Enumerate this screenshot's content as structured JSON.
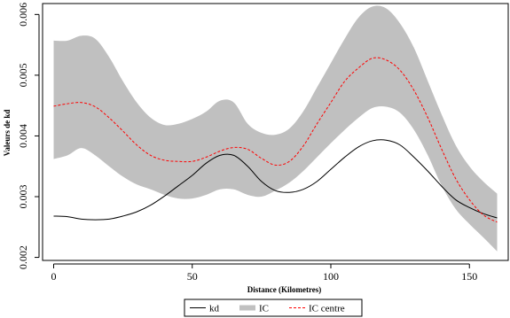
{
  "chart_data": {
    "type": "line",
    "xlabel": "Distance (Kilometres)",
    "ylabel": "Valeurs de kd",
    "xlim": [
      -4,
      164
    ],
    "ylim": [
      0.00195,
      0.00618
    ],
    "x_ticks": [
      0,
      50,
      100,
      150
    ],
    "x_tick_labels": [
      "0",
      "50",
      "100",
      "150"
    ],
    "y_ticks": [
      0.002,
      0.003,
      0.004,
      0.005,
      0.006
    ],
    "y_tick_labels": [
      "0.002",
      "0.003",
      "0.004",
      "0.005",
      "0.006"
    ],
    "grid": false,
    "legend_position": "bottom-center",
    "x": [
      0,
      5,
      10,
      15,
      20,
      25,
      30,
      35,
      40,
      45,
      50,
      55,
      60,
      65,
      70,
      75,
      80,
      85,
      90,
      95,
      100,
      105,
      110,
      115,
      120,
      125,
      130,
      135,
      140,
      145,
      150,
      155,
      160
    ],
    "series": [
      {
        "name": "kd",
        "style": "solid",
        "color": "#000000",
        "values": [
          0.00268,
          0.00267,
          0.00263,
          0.00262,
          0.00263,
          0.00268,
          0.00275,
          0.00286,
          0.00301,
          0.00318,
          0.00335,
          0.00355,
          0.00368,
          0.00368,
          0.0035,
          0.00325,
          0.0031,
          0.00307,
          0.00312,
          0.00325,
          0.00345,
          0.00365,
          0.00382,
          0.00392,
          0.00393,
          0.00385,
          0.00365,
          0.00342,
          0.00317,
          0.00295,
          0.00282,
          0.00272,
          0.00265
        ]
      },
      {
        "name": "IC",
        "style": "band",
        "color": "#c0c0c0",
        "lower": [
          0.00362,
          0.00368,
          0.0038,
          0.00368,
          0.0035,
          0.00333,
          0.0032,
          0.00312,
          0.00303,
          0.00297,
          0.00297,
          0.00303,
          0.00312,
          0.00312,
          0.00303,
          0.003,
          0.0031,
          0.00323,
          0.00342,
          0.00365,
          0.00388,
          0.0041,
          0.0043,
          0.00446,
          0.00448,
          0.00438,
          0.0041,
          0.00368,
          0.00318,
          0.0028,
          0.00255,
          0.00233,
          0.0021
        ],
        "upper": [
          0.00557,
          0.00557,
          0.00565,
          0.0056,
          0.0053,
          0.0049,
          0.00455,
          0.0043,
          0.00418,
          0.0042,
          0.00428,
          0.0044,
          0.00458,
          0.00455,
          0.0042,
          0.00405,
          0.00402,
          0.00412,
          0.0044,
          0.0048,
          0.0052,
          0.0056,
          0.00595,
          0.00613,
          0.0061,
          0.00585,
          0.00545,
          0.0049,
          0.00435,
          0.00385,
          0.0035,
          0.00325,
          0.00305
        ]
      },
      {
        "name": "IC centre",
        "style": "dashed",
        "color": "#ff0000",
        "values": [
          0.00449,
          0.00453,
          0.00455,
          0.00448,
          0.0043,
          0.00408,
          0.00385,
          0.00368,
          0.0036,
          0.00358,
          0.00358,
          0.00365,
          0.00375,
          0.00381,
          0.00378,
          0.00363,
          0.00352,
          0.00358,
          0.00383,
          0.0042,
          0.00455,
          0.0049,
          0.00512,
          0.00528,
          0.00525,
          0.00508,
          0.00475,
          0.0043,
          0.00378,
          0.0033,
          0.00295,
          0.0027,
          0.00258
        ]
      }
    ]
  }
}
